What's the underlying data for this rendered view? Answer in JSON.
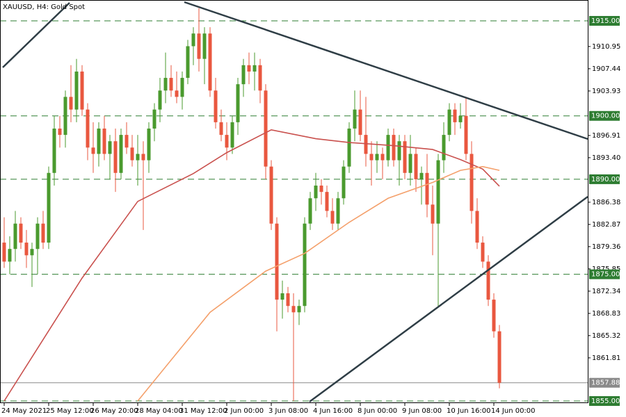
{
  "chart_data": {
    "type": "candlestick",
    "title": "XAUUSD, H4:  Gold Spot",
    "categories": [
      "24 May 2021",
      null,
      null,
      null,
      null,
      null,
      null,
      null,
      "25 May 12:00",
      null,
      null,
      null,
      null,
      null,
      null,
      null,
      "26 May 20:00",
      null,
      null,
      null,
      null,
      null,
      null,
      null,
      "28 May 04:00",
      null,
      null,
      null,
      null,
      null,
      null,
      null,
      "31 May 12:00",
      null,
      null,
      null,
      null,
      null,
      null,
      null,
      "2 Jun 00:00",
      null,
      null,
      null,
      null,
      null,
      null,
      null,
      "3 Jun 08:00",
      null,
      null,
      null,
      null,
      null,
      null,
      null,
      "4 Jun 16:00",
      null,
      null,
      null,
      null,
      null,
      null,
      null,
      "8 Jun 00:00",
      null,
      null,
      null,
      null,
      null,
      null,
      null,
      "9 Jun 08:00",
      null,
      null,
      null,
      null,
      null,
      null,
      null,
      "10 Jun 16:00",
      null,
      null,
      null,
      null,
      null,
      null,
      null,
      "14 Jun 00:00",
      null
    ],
    "open": [
      1880,
      1877,
      1879,
      1883,
      1880,
      1878,
      1879,
      1883,
      1880,
      1891,
      1898,
      1897,
      1903,
      1901,
      1907,
      1901,
      1895,
      1894,
      1898,
      1894,
      1896,
      1891,
      1897,
      1895,
      1893,
      1894,
      1893,
      1898,
      1901,
      1904,
      1906,
      1904,
      1903,
      1906,
      1911,
      1913,
      1909,
      1913,
      1904,
      1899,
      1897,
      1895,
      1899,
      1905,
      1908,
      1907,
      1908,
      1904,
      1892,
      1883,
      1871,
      1872,
      1870,
      1869,
      1870,
      1883,
      1887,
      1889,
      1888,
      1885,
      1883,
      1887,
      1892,
      1898,
      1901,
      1897,
      1894,
      1893,
      1894,
      1893,
      1897,
      1893,
      1896,
      1891,
      1894,
      1890,
      1891,
      1886,
      1883,
      1893,
      1897,
      1901,
      1899,
      1900,
      1894,
      1885,
      1880,
      1877,
      1871,
      1866
    ],
    "high": [
      1884,
      1881,
      1885,
      1884,
      1882,
      1880,
      1884,
      1885,
      1892,
      1900,
      1900,
      1904,
      1908,
      1909,
      1908,
      1902,
      1899,
      1899,
      1900,
      1897,
      1898,
      1898,
      1899,
      1897,
      1897,
      1896,
      1899,
      1902,
      1906,
      1910,
      1908,
      1907,
      1907,
      1912,
      1914,
      1917,
      1914,
      1914,
      1906,
      1901,
      1899,
      1900,
      1906,
      1909,
      1910,
      1910,
      1909,
      1905,
      1893,
      1884,
      1874,
      1873,
      1872,
      1871,
      1884,
      1888,
      1891,
      1890,
      1889,
      1887,
      1888,
      1893,
      1899,
      1904,
      1904,
      1903,
      1896,
      1896,
      1895,
      1898,
      1898,
      1897,
      1897,
      1897,
      1895,
      1892,
      1894,
      1889,
      1894,
      1899,
      1902,
      1902,
      1902,
      1903,
      1896,
      1887,
      1881,
      1878,
      1872,
      1867
    ],
    "low": [
      1876,
      1875,
      1877,
      1879,
      1876,
      1873,
      1875,
      1879,
      1879,
      1889,
      1895,
      1895,
      1899,
      1899,
      1900,
      1893,
      1891,
      1892,
      1893,
      1890,
      1888,
      1890,
      1894,
      1892,
      1889,
      1882,
      1891,
      1896,
      1899,
      1902,
      1903,
      1902,
      1901,
      1905,
      1908,
      1907,
      1905,
      1903,
      1898,
      1896,
      1893,
      1894,
      1897,
      1903,
      1905,
      1904,
      1902,
      1890,
      1882,
      1866,
      1868,
      1869,
      1855,
      1867,
      1869,
      1882,
      1885,
      1886,
      1884,
      1882,
      1882,
      1886,
      1891,
      1896,
      1896,
      1892,
      1889,
      1891,
      1890,
      1892,
      1892,
      1889,
      1890,
      1889,
      1888,
      1886,
      1884,
      1878,
      1870,
      1891,
      1896,
      1897,
      1898,
      1893,
      1883,
      1879,
      1876,
      1870,
      1865,
      1857
    ],
    "close": [
      1877,
      1879,
      1883,
      1880,
      1878,
      1879,
      1883,
      1880,
      1891,
      1898,
      1897,
      1903,
      1901,
      1907,
      1901,
      1895,
      1894,
      1898,
      1894,
      1896,
      1891,
      1897,
      1895,
      1893,
      1894,
      1893,
      1898,
      1901,
      1904,
      1906,
      1904,
      1903,
      1906,
      1911,
      1913,
      1909,
      1913,
      1904,
      1899,
      1897,
      1895,
      1899,
      1905,
      1908,
      1907,
      1908,
      1904,
      1892,
      1883,
      1871,
      1872,
      1870,
      1869,
      1870,
      1883,
      1887,
      1889,
      1888,
      1885,
      1883,
      1887,
      1892,
      1898,
      1901,
      1897,
      1894,
      1893,
      1894,
      1893,
      1897,
      1893,
      1896,
      1891,
      1894,
      1890,
      1891,
      1886,
      1883,
      1893,
      1897,
      1901,
      1899,
      1900,
      1894,
      1885,
      1880,
      1877,
      1871,
      1866,
      1857.88
    ],
    "up_color": "#4a9a2e",
    "down_color": "#e9573f",
    "series": [
      {
        "color": "#c9504d",
        "x": [
          0,
          14,
          24,
          34,
          40,
          48,
          56,
          62,
          70,
          77,
          82,
          86,
          89
        ],
        "values": [
          1855,
          1874.4,
          1886.5,
          1890.9,
          1894.2,
          1897.8,
          1896.4,
          1895.8,
          1895.3,
          1894.7,
          1893.1,
          1891.6,
          1888.9
        ]
      },
      {
        "color": "#f4a06b",
        "x": [
          24,
          37,
          47,
          54,
          62,
          69,
          77,
          82,
          86,
          89
        ],
        "values": [
          1855,
          1869,
          1875.5,
          1878.3,
          1883.2,
          1887,
          1889.5,
          1891.4,
          1892,
          1891.4
        ]
      }
    ],
    "ylim": [
      1854.67,
      1918.29
    ],
    "yticks": [
      1910.95,
      1907.44,
      1903.93,
      1896.91,
      {
        "value": 1893.4,
        "label": "1893.40"
      },
      1886.38,
      1882.87,
      1879.36,
      1875.85,
      1872.34,
      1868.83,
      1865.32,
      1861.81
    ],
    "levels": [
      {
        "value": 1915,
        "label": "1915.00"
      },
      {
        "value": 1900,
        "label": "1900.00"
      },
      {
        "value": 1890,
        "label": "1890.00"
      },
      {
        "value": 1875,
        "label": "1875.00"
      },
      {
        "value": 1855,
        "label": "1855.00"
      }
    ],
    "level_color": "#2e7d32",
    "current": {
      "value": 1857.88,
      "label": "1857.88"
    }
  }
}
